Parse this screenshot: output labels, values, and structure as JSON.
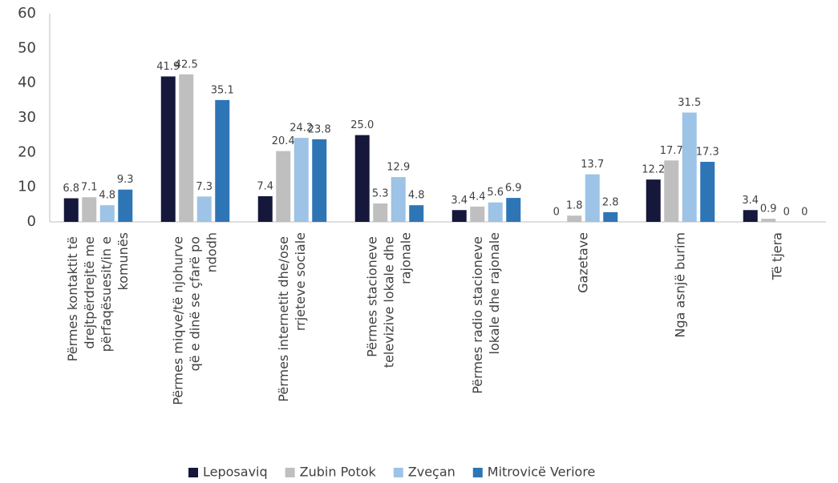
{
  "chart_data": {
    "type": "bar",
    "categories": [
      "Përmes kontaktit të drejtpërdrejtë me përfaqësuesit/in e komunës",
      "Përmes miqve/të njohurve që e dinë se çfarë po ndodh",
      "Përmes internetit dhe/ose rrjeteve sociale",
      "Përmes stacioneve televizive lokale dhe rajonale",
      "Përmes radio stacioneve lokale dhe rajonale",
      "Gazetave",
      "Nga asnjë burim",
      "Të tjera"
    ],
    "series": [
      {
        "name": "Leposaviq",
        "color": "#15173b",
        "values": [
          6.8,
          41.9,
          7.4,
          25.0,
          3.4,
          0,
          12.2,
          3.4
        ],
        "value_labels": [
          "6.8",
          "41.9",
          "7.4",
          "25.0",
          "3.4",
          "0",
          "12.2",
          "3.4"
        ]
      },
      {
        "name": "Zubin Potok",
        "color": "#bfbfbf",
        "values": [
          7.1,
          42.5,
          20.4,
          5.3,
          4.4,
          1.8,
          17.7,
          0.9
        ],
        "value_labels": [
          "7.1",
          "42.5",
          "20.4",
          "5.3",
          "4.4",
          "1.8",
          "17.7",
          "0.9"
        ]
      },
      {
        "name": "Zveçan",
        "color": "#9dc3e6",
        "values": [
          4.8,
          7.3,
          24.2,
          12.9,
          5.6,
          13.7,
          31.5,
          0
        ],
        "value_labels": [
          "4.8",
          "7.3",
          "24.2",
          "12.9",
          "5.6",
          "13.7",
          "31.5",
          "0"
        ]
      },
      {
        "name": "Mitrovicë Veriore",
        "color": "#2e75b6",
        "values": [
          9.3,
          35.1,
          23.8,
          4.8,
          6.9,
          2.8,
          17.3,
          0
        ],
        "value_labels": [
          "9.3",
          "35.1",
          "23.8",
          "4.8",
          "6.9",
          "2.8",
          "17.3",
          "0"
        ]
      }
    ],
    "ylim": [
      0,
      60
    ],
    "yticks": [
      0,
      10,
      20,
      30,
      40,
      50,
      60
    ],
    "grid": false,
    "legend": "bottom"
  }
}
